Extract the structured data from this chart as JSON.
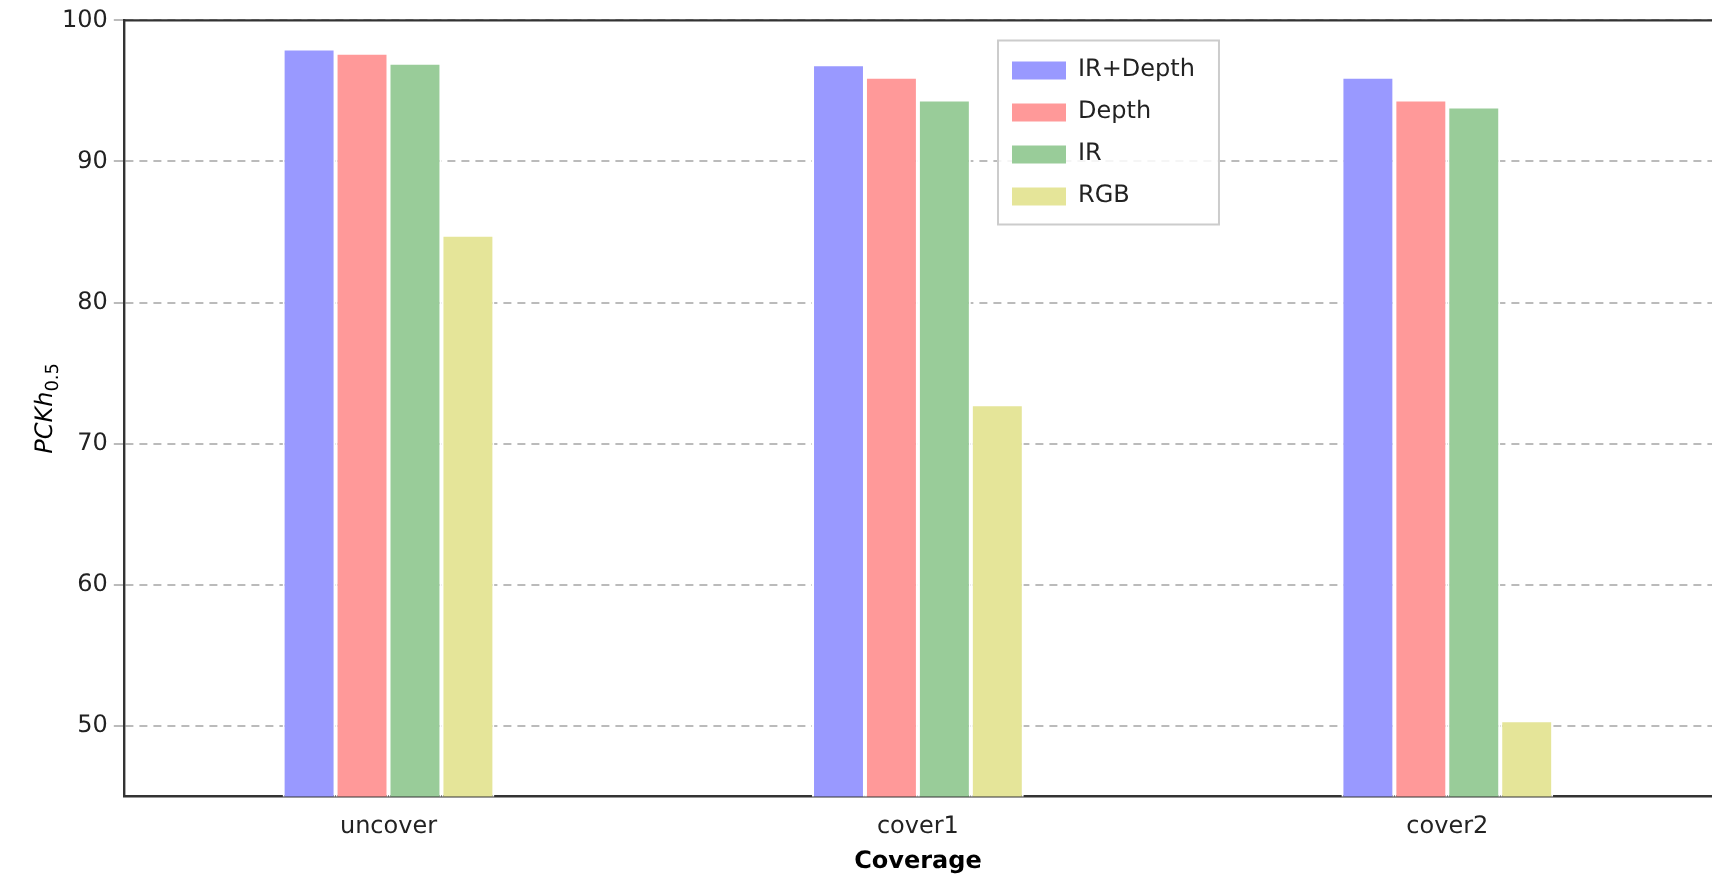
{
  "chart_data": {
    "type": "bar",
    "xlabel": "Coverage",
    "ylabel": "PCKh$_{0.5}$",
    "categories": [
      "uncover",
      "cover1",
      "cover2"
    ],
    "series": [
      {
        "name": "IR+Depth",
        "color": "#9999ff",
        "values": [
          98.0,
          96.9,
          96.0
        ]
      },
      {
        "name": "Depth",
        "color": "#ff9999",
        "values": [
          97.7,
          96.0,
          94.4
        ]
      },
      {
        "name": "IR",
        "color": "#99cc99",
        "values": [
          97.0,
          94.4,
          93.9
        ]
      },
      {
        "name": "RGB",
        "color": "#e5e599",
        "values": [
          84.8,
          72.8,
          50.4
        ]
      }
    ],
    "ylim": [
      45,
      100
    ],
    "yticks": [
      50,
      60,
      70,
      80,
      90,
      100
    ],
    "grid": "y",
    "legend": "top"
  }
}
